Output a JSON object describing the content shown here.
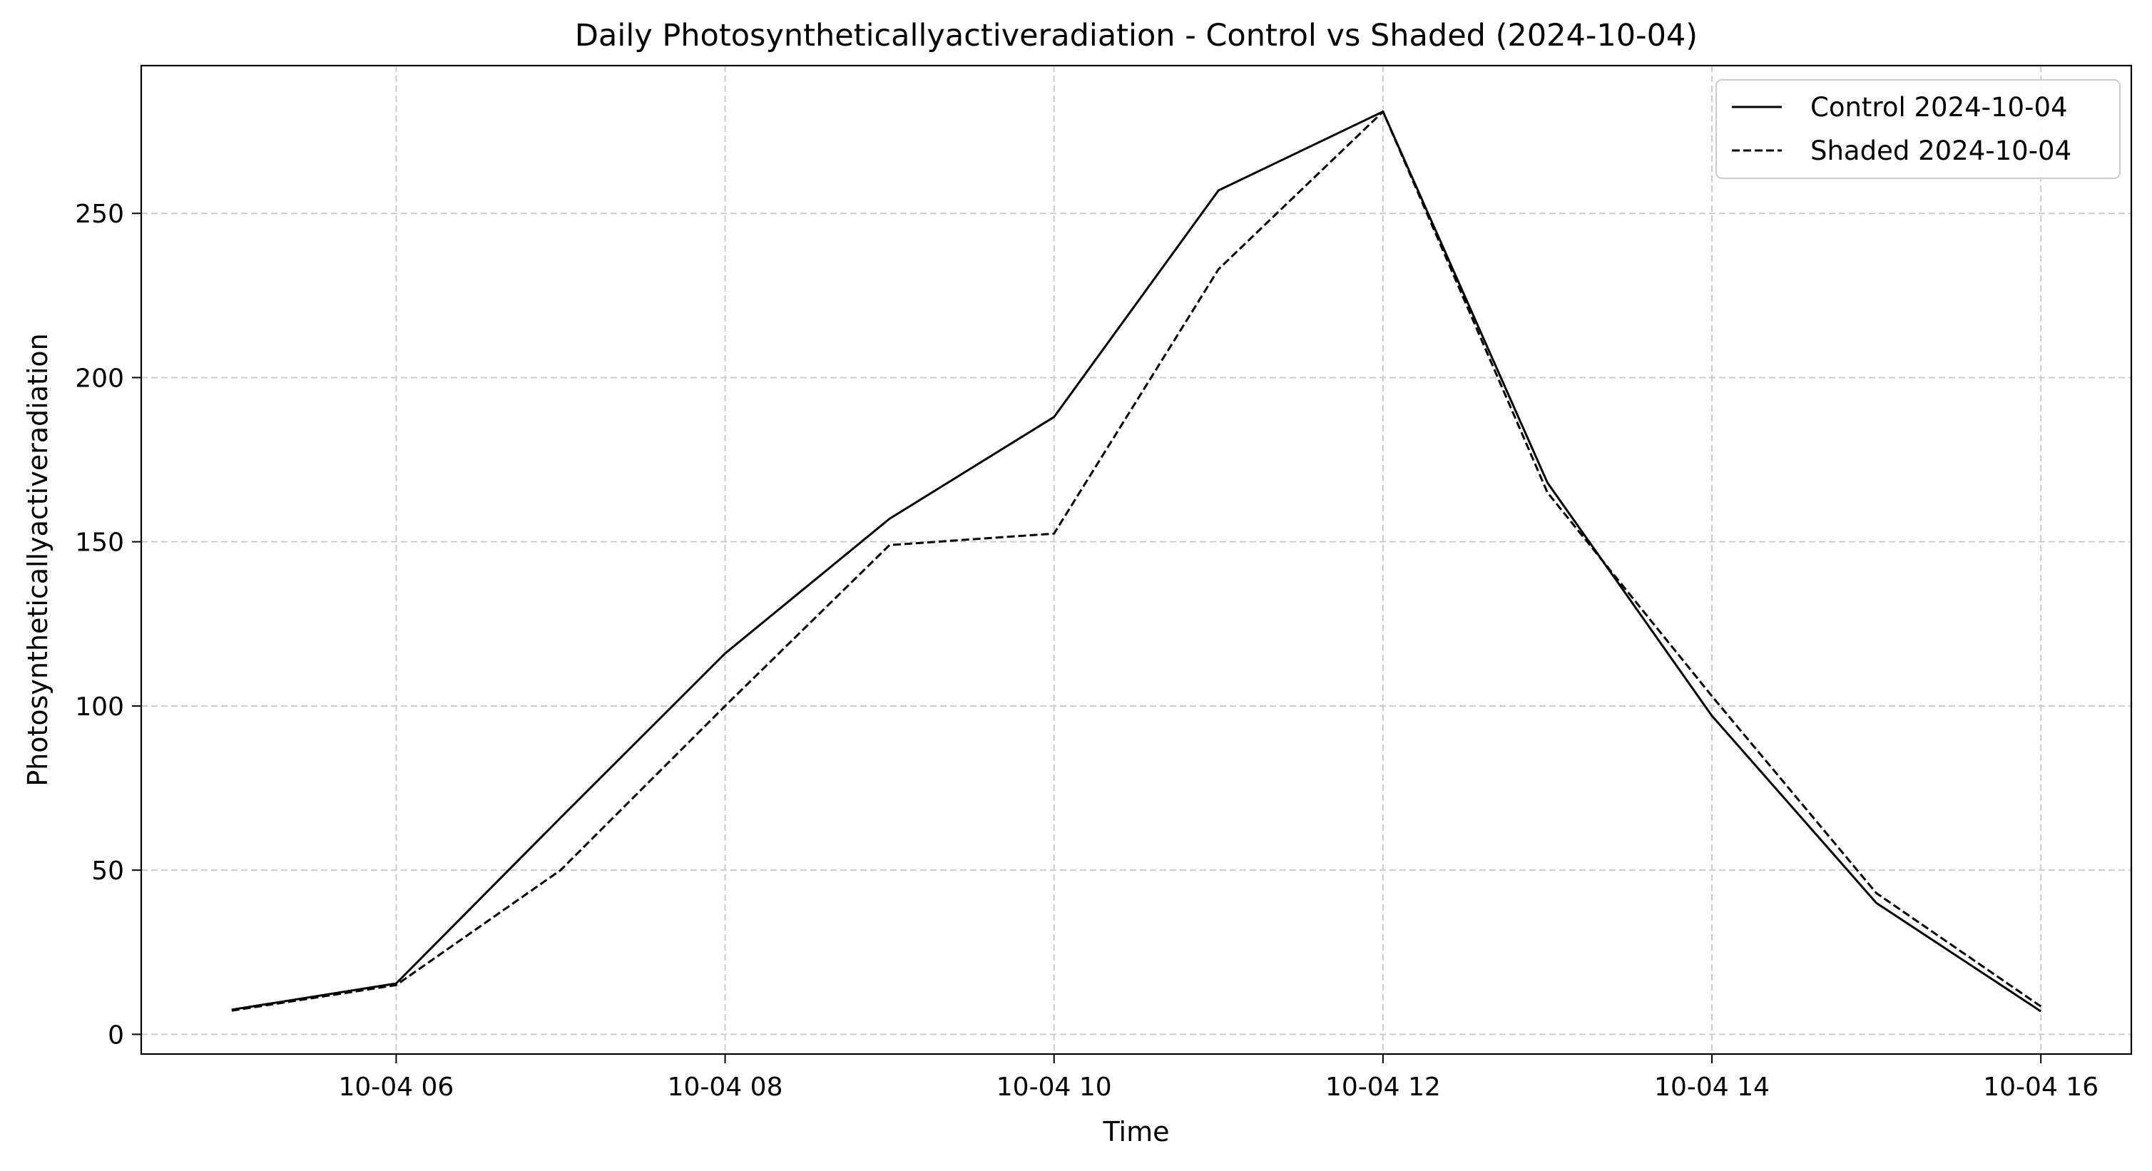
{
  "chart_data": {
    "type": "line",
    "title": "Daily Photosyntheticallyactiveradiation - Control vs Shaded (2024-10-04)",
    "xlabel": "Time",
    "ylabel": "Photosyntheticallyactiveradiation",
    "x": [
      "2024-10-04 05:00",
      "2024-10-04 06:00",
      "2024-10-04 07:00",
      "2024-10-04 08:00",
      "2024-10-04 09:00",
      "2024-10-04 10:00",
      "2024-10-04 11:00",
      "2024-10-04 12:00",
      "2024-10-04 13:00",
      "2024-10-04 14:00",
      "2024-10-04 15:00",
      "2024-10-04 16:00"
    ],
    "xlim": [
      "2024-10-04 04:27",
      "2024-10-04 16:33"
    ],
    "ylim": [
      -6,
      295
    ],
    "x_ticks": [
      {
        "value": "2024-10-04 06:00",
        "label": "10-04 06"
      },
      {
        "value": "2024-10-04 08:00",
        "label": "10-04 08"
      },
      {
        "value": "2024-10-04 10:00",
        "label": "10-04 10"
      },
      {
        "value": "2024-10-04 12:00",
        "label": "10-04 12"
      },
      {
        "value": "2024-10-04 14:00",
        "label": "10-04 14"
      },
      {
        "value": "2024-10-04 16:00",
        "label": "10-04 16"
      }
    ],
    "y_ticks": [
      0,
      50,
      100,
      150,
      200,
      250
    ],
    "grid": true,
    "legend_position": "top-right",
    "series": [
      {
        "name": "Control 2024-10-04",
        "line_style": "solid",
        "color": "#000000",
        "values": [
          7.5,
          15.5,
          66,
          116,
          157,
          188,
          257,
          281,
          168,
          97,
          40,
          7
        ]
      },
      {
        "name": "Shaded 2024-10-04",
        "line_style": "dashed",
        "color": "#000000",
        "values": [
          7.2,
          15,
          50,
          100,
          149,
          152.5,
          233,
          281,
          165,
          103,
          43,
          8.5
        ]
      }
    ]
  },
  "colors": {
    "grid": "#cccccc",
    "axis": "#000000",
    "background": "#ffffff"
  }
}
